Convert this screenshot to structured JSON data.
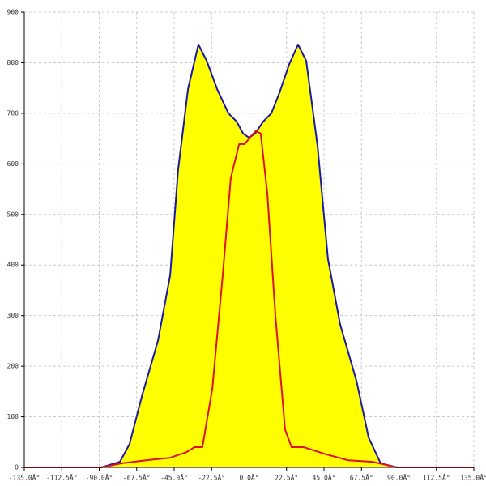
{
  "chart_data": {
    "type": "line",
    "xlim": [
      -135,
      135
    ],
    "ylim": [
      0,
      900
    ],
    "grid": true,
    "xticks": [
      {
        "value": -135,
        "label": "-135.0Â°"
      },
      {
        "value": -112.5,
        "label": "-112.5Â°"
      },
      {
        "value": -90,
        "label": "-90.0Â°"
      },
      {
        "value": -67.5,
        "label": "-67.5Â°"
      },
      {
        "value": -45,
        "label": "-45.0Â°"
      },
      {
        "value": -22.5,
        "label": "-22.5Â°"
      },
      {
        "value": 0,
        "label": "0.0Â°"
      },
      {
        "value": 22.5,
        "label": "22.5Â°"
      },
      {
        "value": 45,
        "label": "45.0Â°"
      },
      {
        "value": 67.5,
        "label": "67.5Â°"
      },
      {
        "value": 90,
        "label": "90.0Â°"
      },
      {
        "value": 112.5,
        "label": "112.5Â°"
      },
      {
        "value": 135,
        "label": "135.0Â°"
      }
    ],
    "yticks": [
      0,
      100,
      200,
      300,
      400,
      500,
      600,
      700,
      800,
      900
    ],
    "series": [
      {
        "color": "#1a1aa6",
        "fill": "#ffff00",
        "x": [
          -88.8,
          -77.6,
          -71.8,
          -64.5,
          -54.7,
          -47.4,
          -42.6,
          -36.7,
          -30.4,
          -25.5,
          -19.2,
          -12.4,
          -7.5,
          -3.6,
          0,
          3.6,
          8.5,
          13.4,
          18.2,
          24,
          29.4,
          34.3,
          41.1,
          47.4,
          54.7,
          64.5,
          71.8,
          79,
          88.8
        ],
        "values": [
          0,
          11,
          46,
          139,
          251,
          380,
          588,
          748,
          836,
          804,
          748,
          700,
          684,
          660,
          652,
          660,
          684,
          700,
          740,
          796,
          836,
          804,
          636,
          412,
          283,
          171,
          59,
          8,
          0
        ]
      },
      {
        "color": "#e0101a",
        "x": [
          -135,
          -88.8,
          -76.6,
          -62,
          -47.4,
          -37.7,
          -32.8,
          -28,
          -22.1,
          -15.8,
          -11,
          -6,
          -2.7,
          1.2,
          4.1,
          7,
          11,
          15.8,
          21.6,
          25.5,
          32.8,
          45,
          59.6,
          74.2,
          88.8,
          135
        ],
        "values": [
          0,
          0,
          8,
          14,
          19,
          30,
          40,
          40,
          155,
          380,
          572,
          639,
          639,
          655,
          665,
          660,
          540,
          300,
          75,
          40,
          40,
          27,
          14,
          11,
          0,
          0
        ]
      }
    ]
  }
}
